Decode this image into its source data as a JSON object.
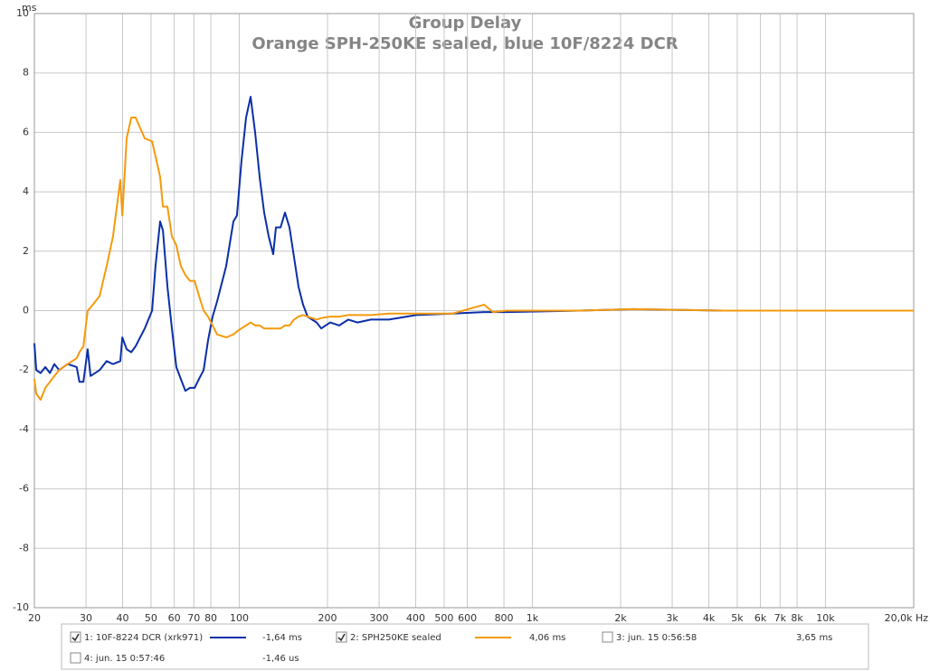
{
  "chart_data": {
    "type": "line",
    "title": "Group Delay",
    "subtitle": "Orange SPH-250KE sealed, blue 10F/8224 DCR",
    "y_label": "ms",
    "xscale": "log",
    "grid": true,
    "xlim": [
      20,
      20000
    ],
    "ylim": [
      -10,
      10
    ],
    "xticks": [
      20,
      30,
      40,
      50,
      60,
      70,
      80,
      100,
      200,
      300,
      400,
      500,
      600,
      800,
      {
        "value": 1000,
        "label": "1k"
      },
      {
        "value": 2000,
        "label": "2k"
      },
      {
        "value": 3000,
        "label": "3k"
      },
      {
        "value": 4000,
        "label": "4k"
      },
      {
        "value": 5000,
        "label": "5k"
      },
      {
        "value": 6000,
        "label": "6k"
      },
      {
        "value": 7000,
        "label": "7k"
      },
      {
        "value": 8000,
        "label": "8k"
      },
      {
        "value": 10000,
        "label": "10k"
      },
      {
        "value": 20000,
        "label": "20,0k Hz"
      }
    ],
    "yticks": [
      10,
      8,
      6,
      4,
      2,
      0,
      -2,
      -4,
      -6,
      -8,
      -10
    ],
    "x": [
      20,
      20.3,
      21,
      21.8,
      22.6,
      23.4,
      24.3,
      26,
      27.9,
      28.5,
      29.4,
      30.4,
      31.1,
      33.4,
      35.3,
      37.1,
      39.3,
      39.9,
      41.3,
      42.8,
      44.3,
      47.6,
      50.4,
      51.8,
      53.7,
      54.9,
      56.9,
      58.9,
      61,
      63.2,
      65.5,
      67.9,
      70.4,
      72.9,
      75.6,
      78.3,
      81.1,
      84,
      90.2,
      95.5,
      98.2,
      101.7,
      105.5,
      109.3,
      113.3,
      117.4,
      121.6,
      126,
      130.6,
      133.4,
      138.3,
      143.2,
      148.4,
      153.8,
      159.3,
      165.1,
      171.1,
      183.7,
      190.4,
      204.3,
      219.3,
      235.5,
      252.9,
      281.3,
      324.3,
      401.3,
      533.3,
      684,
      734,
      816.6,
      1442,
      2208,
      4496,
      20000
    ],
    "series": [
      {
        "name": "1: 10F-8224 DCR (xrk971)",
        "color": "#0a2fa8",
        "checked": true,
        "readout": "-1,64 ms",
        "values": [
          -1.1,
          -2.0,
          -2.1,
          -1.9,
          -2.1,
          -1.8,
          -2.0,
          -1.8,
          -1.9,
          -2.4,
          -2.4,
          -1.3,
          -2.2,
          -2.0,
          -1.7,
          -1.8,
          -1.7,
          -0.9,
          -1.3,
          -1.4,
          -1.2,
          -0.6,
          0.0,
          1.5,
          3.0,
          2.7,
          0.8,
          -0.6,
          -1.9,
          -2.3,
          -2.7,
          -2.6,
          -2.6,
          -2.3,
          -2.0,
          -1.0,
          -0.2,
          0.3,
          1.5,
          3.0,
          3.2,
          5.0,
          6.5,
          7.2,
          6.0,
          4.5,
          3.3,
          2.5,
          1.9,
          2.8,
          2.8,
          3.3,
          2.8,
          1.8,
          0.8,
          0.2,
          -0.2,
          -0.4,
          -0.6,
          -0.4,
          -0.5,
          -0.3,
          -0.4,
          -0.3,
          -0.3,
          -0.15,
          -0.1,
          -0.05,
          -0.05,
          -0.05,
          0.0,
          0.05,
          0.0,
          0.0
        ]
      },
      {
        "name": "2: SPH250KE sealed",
        "color": "#f59a0c",
        "checked": true,
        "readout": "4,06 ms",
        "values": [
          -2.3,
          -2.8,
          -3.0,
          -2.6,
          -2.4,
          -2.2,
          -2.0,
          -1.8,
          -1.6,
          -1.4,
          -1.2,
          0.0,
          0.1,
          0.5,
          1.5,
          2.5,
          4.4,
          3.2,
          5.8,
          6.5,
          6.5,
          5.8,
          5.7,
          5.2,
          4.5,
          3.5,
          3.5,
          2.5,
          2.2,
          1.5,
          1.2,
          1.0,
          1.0,
          0.5,
          0.0,
          -0.2,
          -0.5,
          -0.8,
          -0.9,
          -0.8,
          -0.7,
          -0.6,
          -0.5,
          -0.4,
          -0.5,
          -0.5,
          -0.6,
          -0.6,
          -0.6,
          -0.6,
          -0.6,
          -0.5,
          -0.5,
          -0.3,
          -0.2,
          -0.15,
          -0.2,
          -0.3,
          -0.25,
          -0.2,
          -0.2,
          -0.15,
          -0.15,
          -0.15,
          -0.1,
          -0.1,
          -0.1,
          0.2,
          -0.05,
          0.0,
          0.0,
          0.05,
          0.0,
          0.0
        ]
      }
    ],
    "extra_legend": [
      {
        "name": "3: jun. 15 0:56:58",
        "checked": false,
        "readout": "3,65 ms"
      },
      {
        "name": "4: jun. 15 0:57:46",
        "checked": false,
        "readout": "-1,46 us"
      }
    ]
  }
}
